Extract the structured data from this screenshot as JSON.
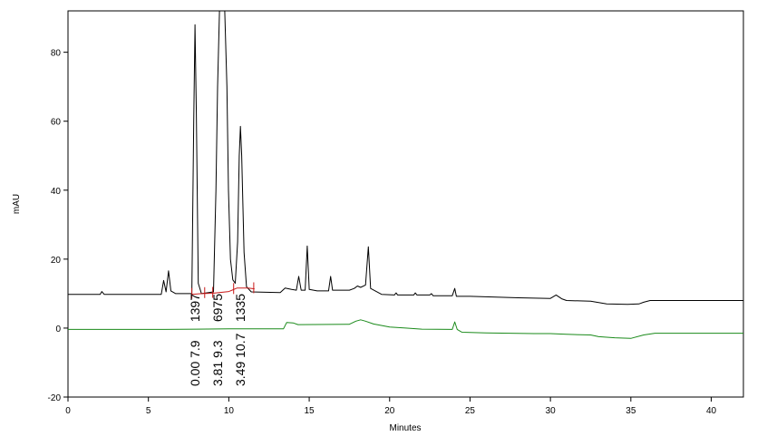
{
  "chart_data": {
    "type": "line",
    "title": "",
    "xlabel": "Minutes",
    "ylabel": "mAU",
    "xlim": [
      0,
      42
    ],
    "ylim": [
      -20,
      92
    ],
    "x_ticks": [
      0,
      5,
      10,
      15,
      20,
      25,
      30,
      35,
      40
    ],
    "y_ticks": [
      -20,
      0,
      20,
      40,
      60,
      80
    ],
    "x_tick_labels": [
      "0",
      "5",
      "10",
      "15",
      "20",
      "25",
      "30",
      "35",
      "40"
    ],
    "y_tick_labels": [
      "-20",
      "0",
      "20",
      "40",
      "60",
      "80"
    ],
    "grid": false,
    "legend": "none",
    "series": [
      {
        "color": "#000000",
        "points": [
          [
            0,
            9.8
          ],
          [
            2.0,
            9.8
          ],
          [
            2.1,
            10.6
          ],
          [
            2.25,
            9.8
          ],
          [
            5.8,
            9.8
          ],
          [
            5.95,
            13.8
          ],
          [
            6.1,
            10.5
          ],
          [
            6.25,
            16.6
          ],
          [
            6.4,
            10.8
          ],
          [
            6.7,
            10.0
          ],
          [
            7.7,
            10.0
          ],
          [
            7.82,
            60
          ],
          [
            7.9,
            88
          ],
          [
            7.98,
            62
          ],
          [
            8.1,
            13.0
          ],
          [
            8.3,
            10.0
          ],
          [
            9.05,
            10.5
          ],
          [
            9.2,
            40
          ],
          [
            9.3,
            70
          ],
          [
            9.42,
            92
          ],
          [
            9.75,
            92
          ],
          [
            9.88,
            70
          ],
          [
            9.98,
            40
          ],
          [
            10.1,
            20
          ],
          [
            10.25,
            14
          ],
          [
            10.4,
            13
          ],
          [
            10.55,
            25
          ],
          [
            10.65,
            50
          ],
          [
            10.72,
            58.5
          ],
          [
            10.8,
            50
          ],
          [
            10.95,
            22
          ],
          [
            11.1,
            12
          ],
          [
            11.4,
            10.5
          ],
          [
            13.2,
            10.3
          ],
          [
            13.5,
            11.6
          ],
          [
            13.9,
            11.2
          ],
          [
            14.2,
            11.0
          ],
          [
            14.35,
            15.0
          ],
          [
            14.5,
            11.0
          ],
          [
            14.75,
            11.0
          ],
          [
            14.88,
            23.8
          ],
          [
            15.0,
            11.2
          ],
          [
            15.5,
            10.8
          ],
          [
            16.2,
            10.8
          ],
          [
            16.33,
            15.0
          ],
          [
            16.45,
            11.0
          ],
          [
            17.5,
            11.0
          ],
          [
            17.8,
            11.5
          ],
          [
            18.0,
            12.2
          ],
          [
            18.2,
            11.8
          ],
          [
            18.5,
            12.5
          ],
          [
            18.68,
            23.6
          ],
          [
            18.82,
            11.5
          ],
          [
            19.5,
            9.8
          ],
          [
            20.3,
            9.6
          ],
          [
            20.4,
            10.2
          ],
          [
            20.5,
            9.6
          ],
          [
            21.5,
            9.6
          ],
          [
            21.6,
            10.2
          ],
          [
            21.7,
            9.6
          ],
          [
            22.5,
            9.6
          ],
          [
            22.6,
            10.0
          ],
          [
            22.7,
            9.4
          ],
          [
            23.9,
            9.4
          ],
          [
            24.05,
            11.5
          ],
          [
            24.15,
            9.2
          ],
          [
            25.0,
            9.2
          ],
          [
            28.0,
            8.8
          ],
          [
            30.0,
            8.6
          ],
          [
            30.35,
            9.6
          ],
          [
            30.7,
            8.5
          ],
          [
            31.0,
            8.0
          ],
          [
            32.5,
            7.8
          ],
          [
            33.5,
            7.0
          ],
          [
            34.8,
            6.9
          ],
          [
            35.5,
            7.0
          ],
          [
            35.8,
            7.5
          ],
          [
            36.2,
            8.0
          ],
          [
            42.0,
            8.0
          ]
        ]
      },
      {
        "color": "#1a8a1a",
        "points": [
          [
            0,
            -0.4
          ],
          [
            6.0,
            -0.4
          ],
          [
            8.0,
            -0.3
          ],
          [
            10.0,
            -0.2
          ],
          [
            13.4,
            -0.2
          ],
          [
            13.6,
            1.6
          ],
          [
            14.0,
            1.5
          ],
          [
            14.3,
            1.0
          ],
          [
            17.5,
            1.1
          ],
          [
            17.9,
            2.0
          ],
          [
            18.2,
            2.4
          ],
          [
            18.5,
            2.0
          ],
          [
            19.0,
            1.2
          ],
          [
            20.0,
            0.3
          ],
          [
            21.0,
            0.0
          ],
          [
            22.0,
            -0.3
          ],
          [
            23.9,
            -0.4
          ],
          [
            24.05,
            1.8
          ],
          [
            24.2,
            -0.4
          ],
          [
            24.5,
            -1.2
          ],
          [
            26.0,
            -1.4
          ],
          [
            29.0,
            -1.6
          ],
          [
            30.0,
            -1.6
          ],
          [
            31.0,
            -1.8
          ],
          [
            32.5,
            -2.0
          ],
          [
            33.0,
            -2.5
          ],
          [
            34.0,
            -2.8
          ],
          [
            35.0,
            -3.0
          ],
          [
            35.8,
            -2.0
          ],
          [
            36.5,
            -1.5
          ],
          [
            42.0,
            -1.5
          ]
        ]
      },
      {
        "color": "#c81818",
        "points": [
          [
            7.7,
            9.8
          ],
          [
            8.3,
            10.0
          ],
          [
            9.0,
            10.1
          ],
          [
            10.0,
            10.6
          ],
          [
            10.5,
            11.6
          ],
          [
            11.2,
            11.6
          ],
          [
            11.6,
            11.4
          ]
        ]
      }
    ],
    "peak_labels": [
      {
        "x": 7.9,
        "top": "1397",
        "bottom": "0.00 7.9"
      },
      {
        "x": 9.3,
        "top": "6975",
        "bottom": "3.81 9.3"
      },
      {
        "x": 10.7,
        "top": "1335",
        "bottom": "3.49 10.7"
      }
    ],
    "integration_markers": [
      7.7,
      8.5,
      9.0,
      10.3,
      11.55
    ]
  }
}
